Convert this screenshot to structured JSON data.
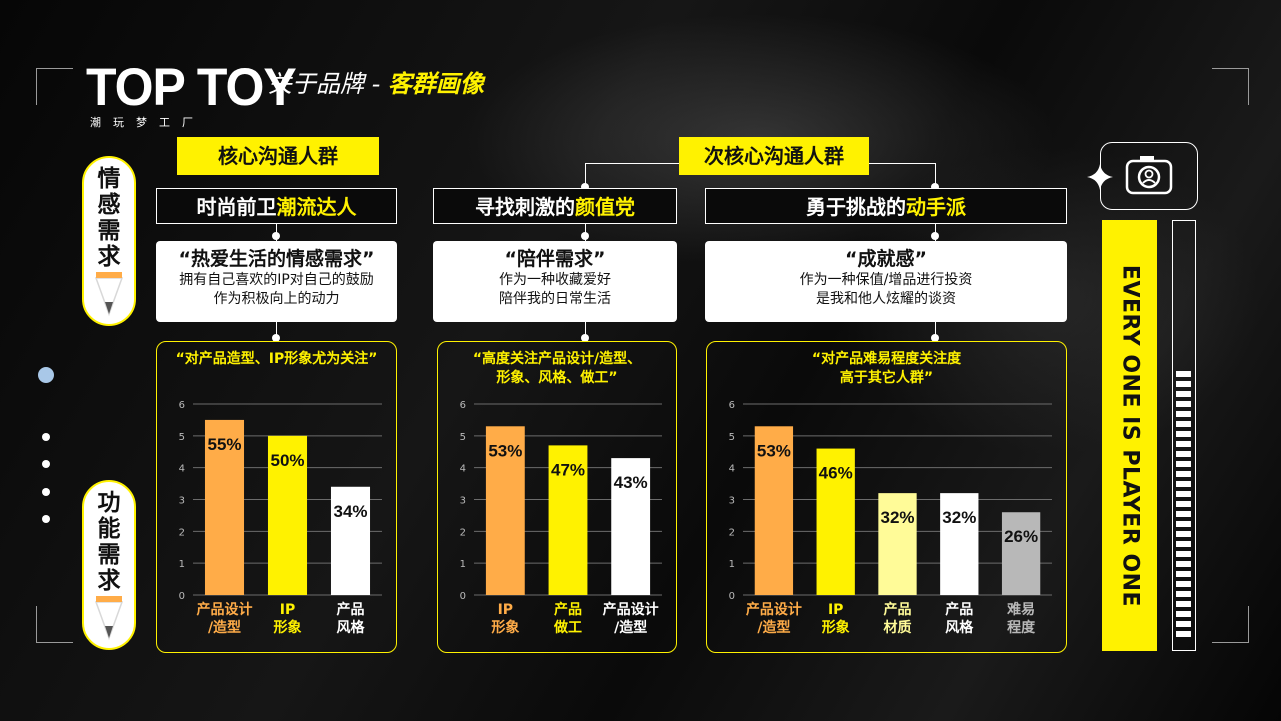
{
  "brand": {
    "name": "TOP TOY",
    "tagline": "潮玩梦工厂"
  },
  "title": {
    "prefix": "关于品牌",
    "sep": " - ",
    "highlight": "客群画像"
  },
  "side_labels": {
    "emotional": "情感需求",
    "functional": "功能需求"
  },
  "groups": {
    "core": "核心沟通人群",
    "secondary": "次核心沟通人群"
  },
  "personas": [
    {
      "pre": "时尚前卫",
      "hl": "潮流达人"
    },
    {
      "pre": "寻找刺激的",
      "hl": "颜值党"
    },
    {
      "pre": "勇于挑战的",
      "hl": "动手派"
    }
  ],
  "needs": [
    {
      "head": "“热爱生活的情感需求”",
      "l1": "拥有自己喜欢的IP对自己的鼓励",
      "l2": "作为积极向上的动力"
    },
    {
      "head": "“陪伴需求”",
      "l1": "作为一种收藏爱好",
      "l2": "陪伴我的日常生活"
    },
    {
      "head": "“成就感”",
      "l1": "作为一种保值/增品进行投资",
      "l2": "是我和他人炫耀的谈资"
    }
  ],
  "panels": [
    {
      "q1": "“对产品造型、IP形象尤为关注”",
      "q2": ""
    },
    {
      "q1": "“高度关注产品设计/造型、",
      "q2": "形象、风格、做工”"
    },
    {
      "q1": "“对产品难易程度关注度",
      "q2": "高于其它人群”"
    }
  ],
  "banner": "EVERY ONE IS PLAYER ONE",
  "colors": {
    "accent": "#fff200",
    "orange": "#ffac48",
    "pale": "#fffb98",
    "gray": "#b8b8b8",
    "white": "#ffffff"
  },
  "icons": [
    "camera-icon",
    "sparkle-icon",
    "pencil-tip-icon"
  ],
  "chart_data": [
    {
      "type": "bar",
      "ylim": [
        0,
        6
      ],
      "yticks": [
        0,
        1,
        2,
        3,
        4,
        5,
        6
      ],
      "categories": [
        [
          "产品设计",
          "/造型"
        ],
        [
          "IP",
          "形象"
        ],
        [
          "产品",
          "风格"
        ]
      ],
      "values": [
        5.5,
        5.0,
        3.4
      ],
      "labels": [
        "55%",
        "50%",
        "34%"
      ],
      "colors": [
        "#ffac48",
        "#fff200",
        "#ffffff"
      ],
      "labelColors": [
        "#ffac48",
        "#fff200",
        "#ffffff"
      ]
    },
    {
      "type": "bar",
      "ylim": [
        0,
        6
      ],
      "yticks": [
        0,
        1,
        2,
        3,
        4,
        5,
        6
      ],
      "categories": [
        [
          "IP",
          "形象"
        ],
        [
          "产品",
          "做工"
        ],
        [
          "产品设计",
          "/造型"
        ]
      ],
      "values": [
        5.3,
        4.7,
        4.3
      ],
      "labels": [
        "53%",
        "47%",
        "43%"
      ],
      "colors": [
        "#ffac48",
        "#fff200",
        "#ffffff"
      ],
      "labelColors": [
        "#ffac48",
        "#fff200",
        "#ffffff"
      ]
    },
    {
      "type": "bar",
      "ylim": [
        0,
        6
      ],
      "yticks": [
        0,
        1,
        2,
        3,
        4,
        5,
        6
      ],
      "categories": [
        [
          "产品设计",
          "/造型"
        ],
        [
          "IP",
          "形象"
        ],
        [
          "产品",
          "材质"
        ],
        [
          "产品",
          "风格"
        ],
        [
          "难易",
          "程度"
        ]
      ],
      "values": [
        5.3,
        4.6,
        3.2,
        3.2,
        2.6
      ],
      "labels": [
        "53%",
        "46%",
        "32%",
        "32%",
        "26%"
      ],
      "colors": [
        "#ffac48",
        "#fff200",
        "#fffb98",
        "#ffffff",
        "#b8b8b8"
      ],
      "labelColors": [
        "#ffac48",
        "#fff200",
        "#fffb98",
        "#ffffff",
        "#b8b8b8"
      ]
    }
  ]
}
